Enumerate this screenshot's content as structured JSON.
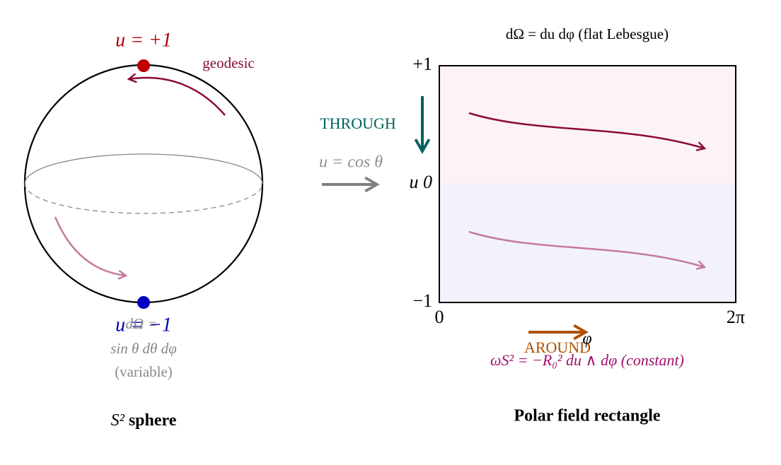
{
  "sphere": {
    "north_label": "u = +1",
    "geodesic_label": "geodesic",
    "south_label": "u = −1",
    "measure_label": "dΩ =",
    "measure_formula": "sin θ dθ dφ",
    "measure_note": "(variable)",
    "caption_symbol": "S²",
    "caption_text": "sphere"
  },
  "map": {
    "through_label": "THROUGH",
    "map_label": "u = cos θ"
  },
  "rectangle": {
    "title": "dΩ = du dφ (flat Lebesgue)",
    "y_top": "+1",
    "y_mid": "u 0",
    "y_bottom": "−1",
    "x_left": "0",
    "x_right": "2π",
    "around_label": "AROUND",
    "phi_label": "φ",
    "form_label": "ωS² = −R₀² du ∧ dφ (constant)",
    "caption": "Polar field rectangle"
  }
}
